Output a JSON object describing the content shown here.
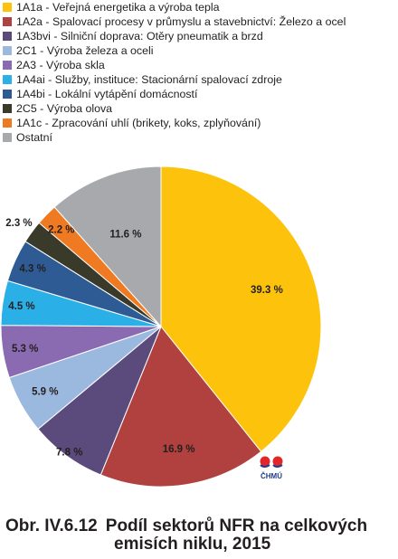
{
  "chart_data": {
    "type": "pie",
    "categories": [
      "1A1a - Veřejná energetika a výroba tepla",
      "1A2a - Spalovací procesy v průmyslu a stavebnictví: Železo a ocel",
      "1A3bvi - Silniční doprava: Otěry pneumatik a brzd",
      "2C1 - Výroba železa a oceli",
      "2A3 - Výroba skla",
      "1A4ai - Služby, instituce: Stacionární spalovací zdroje",
      "1A4bi - Lokální vytápění domácností",
      "2C5 - Výroba olova",
      "1A1c - Zpracování uhlí (brikety, koks, zplyňování)",
      "Ostatní"
    ],
    "values": [
      39.3,
      16.9,
      7.8,
      5.9,
      5.3,
      4.5,
      4.3,
      2.3,
      2.2,
      11.6
    ],
    "value_labels": [
      "39.3 %",
      "16.9 %",
      "7.8 %",
      "5.9 %",
      "5.3 %",
      "4.5 %",
      "4.3 %",
      "2.3 %",
      "2.2 %",
      "11.6 %"
    ],
    "colors": [
      "#fdc30c",
      "#b0413e",
      "#5b4a7c",
      "#9bb8df",
      "#8a6ab0",
      "#2ab0e6",
      "#2e5b94",
      "#3a3a2a",
      "#ef7a22",
      "#a7a9ac"
    ],
    "start_angle_deg": 0,
    "direction": "clockwise",
    "legend_position": "top-left"
  },
  "caption": {
    "number": "Obr. IV.6.12",
    "line1": "Podíl sektorů NFR na celkových",
    "line2": "emisích niklu, 2015"
  },
  "logo": {
    "text": "ČHMÚ",
    "icon": "chmu-logo"
  }
}
